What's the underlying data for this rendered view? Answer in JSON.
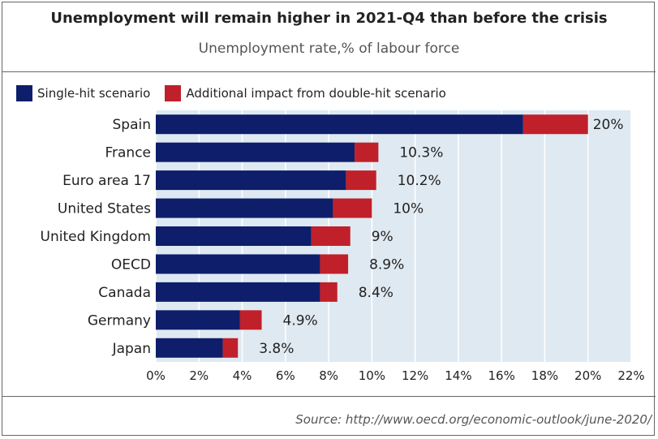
{
  "title": "Unemployment will remain higher in 2021-Q4 than before the crisis",
  "subtitle": "Unemployment rate,% of labour force",
  "source": "Source: http://www.oecd.org/economic-outlook/june-2020/",
  "colors": {
    "single_hit": "#0e1e6b",
    "double_hit": "#c0202a",
    "plot_background": "#dfe9f1",
    "grid": "#ffffff"
  },
  "legend": {
    "single_hit": "Single-hit scenario",
    "double_hit": "Additional impact from double-hit scenario"
  },
  "chart_data": {
    "type": "bar",
    "orientation": "horizontal",
    "stacked": true,
    "categories": [
      "Spain",
      "France",
      "Euro area 17",
      "United States",
      "United Kingdom",
      "OECD",
      "Canada",
      "Germany",
      "Japan"
    ],
    "series": [
      {
        "name": "Single-hit scenario",
        "values": [
          17.0,
          9.2,
          8.8,
          8.2,
          7.2,
          7.6,
          7.6,
          3.9,
          3.1
        ]
      },
      {
        "name": "Additional impact from double-hit scenario",
        "values": [
          3.0,
          1.1,
          1.4,
          1.8,
          1.8,
          1.3,
          0.8,
          1.0,
          0.7
        ]
      }
    ],
    "totals": [
      "20%",
      "10.3%",
      "10.2%",
      "10%",
      "9%",
      "8.9%",
      "8.4%",
      "4.9%",
      "3.8%"
    ],
    "xlim": [
      0,
      22
    ],
    "xticks": [
      0,
      2,
      4,
      6,
      8,
      10,
      12,
      14,
      16,
      18,
      20,
      22
    ],
    "xtick_labels": [
      "0%",
      "2%",
      "4%",
      "6%",
      "8%",
      "10%",
      "12%",
      "14%",
      "16%",
      "18%",
      "20%",
      "22%"
    ],
    "grid": true,
    "legend_position": "top-left"
  }
}
